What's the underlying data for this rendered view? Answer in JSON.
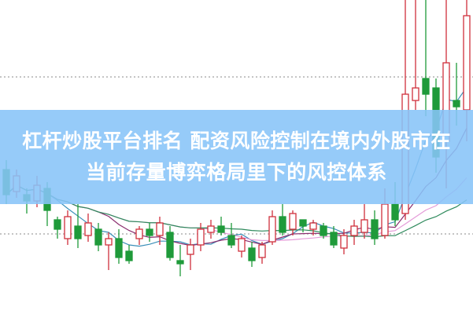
{
  "title": {
    "line1": "杠杆炒股平台排名 配资风险控制在境内外股市在",
    "line2": "当前存量博弈格局里下的风控体系"
  },
  "colors": {
    "up": "#d0303c",
    "down": "#1f9a3a",
    "ma5": "#3a8fb8",
    "ma10": "#8a2d6e",
    "ma20": "#e49ad8",
    "ma30": "#2e8a5c",
    "banner": "#87c4f8"
  },
  "chart_data": {
    "type": "candlestick",
    "grid": "dotted horizontal",
    "ylim": [
      0,
      100
    ],
    "moving_averages": [
      "ma5",
      "ma10",
      "ma20",
      "ma30"
    ],
    "candles": [
      {
        "o": 46,
        "h": 49,
        "l": 35,
        "c": 38
      },
      {
        "o": 39,
        "h": 46,
        "l": 37,
        "c": 44
      },
      {
        "o": 38,
        "h": 40,
        "l": 32,
        "c": 36
      },
      {
        "o": 36,
        "h": 44,
        "l": 34,
        "c": 41
      },
      {
        "o": 40,
        "h": 42,
        "l": 28,
        "c": 33
      },
      {
        "o": 30,
        "h": 31,
        "l": 24,
        "c": 27
      },
      {
        "o": 24,
        "h": 33,
        "l": 22,
        "c": 31
      },
      {
        "o": 28,
        "h": 35,
        "l": 21,
        "c": 24
      },
      {
        "o": 25,
        "h": 32,
        "l": 23,
        "c": 29
      },
      {
        "o": 27,
        "h": 29,
        "l": 20,
        "c": 22
      },
      {
        "o": 22,
        "h": 26,
        "l": 14,
        "c": 24
      },
      {
        "o": 24,
        "h": 27,
        "l": 16,
        "c": 18
      },
      {
        "o": 20,
        "h": 22,
        "l": 16,
        "c": 17
      },
      {
        "o": 24,
        "h": 28,
        "l": 22,
        "c": 27
      },
      {
        "o": 27,
        "h": 29,
        "l": 23,
        "c": 25
      },
      {
        "o": 25,
        "h": 31,
        "l": 22,
        "c": 29
      },
      {
        "o": 26,
        "h": 28,
        "l": 17,
        "c": 18
      },
      {
        "o": 17,
        "h": 22,
        "l": 12,
        "c": 16
      },
      {
        "o": 19,
        "h": 24,
        "l": 14,
        "c": 22
      },
      {
        "o": 22,
        "h": 29,
        "l": 20,
        "c": 27
      },
      {
        "o": 26,
        "h": 30,
        "l": 24,
        "c": 28
      },
      {
        "o": 28,
        "h": 31,
        "l": 25,
        "c": 26
      },
      {
        "o": 25,
        "h": 29,
        "l": 21,
        "c": 22
      },
      {
        "o": 20,
        "h": 25,
        "l": 18,
        "c": 24
      },
      {
        "o": 21,
        "h": 23,
        "l": 15,
        "c": 17
      },
      {
        "o": 18,
        "h": 23,
        "l": 16,
        "c": 22
      },
      {
        "o": 23,
        "h": 33,
        "l": 22,
        "c": 31
      },
      {
        "o": 31,
        "h": 35,
        "l": 25,
        "c": 26
      },
      {
        "o": 27,
        "h": 33,
        "l": 25,
        "c": 32
      },
      {
        "o": 30,
        "h": 29,
        "l": 26,
        "c": 28
      },
      {
        "o": 27,
        "h": 30,
        "l": 25,
        "c": 29
      },
      {
        "o": 28,
        "h": 29,
        "l": 24,
        "c": 25
      },
      {
        "o": 26,
        "h": 28,
        "l": 21,
        "c": 22
      },
      {
        "o": 21,
        "h": 27,
        "l": 19,
        "c": 25
      },
      {
        "o": 25,
        "h": 30,
        "l": 22,
        "c": 28
      },
      {
        "o": 26,
        "h": 35,
        "l": 24,
        "c": 30
      },
      {
        "o": 30,
        "h": 33,
        "l": 22,
        "c": 24
      },
      {
        "o": 25,
        "h": 40,
        "l": 24,
        "c": 35
      },
      {
        "o": 35,
        "h": 42,
        "l": 28,
        "c": 30
      },
      {
        "o": 32,
        "h": 100,
        "l": 30,
        "c": 70
      },
      {
        "o": 68,
        "h": 102,
        "l": 65,
        "c": 72
      },
      {
        "o": 75,
        "h": 100,
        "l": 63,
        "c": 70
      },
      {
        "o": 72,
        "h": 75,
        "l": 45,
        "c": 50
      },
      {
        "o": 55,
        "h": 105,
        "l": 40,
        "c": 80
      },
      {
        "o": 68,
        "h": 80,
        "l": 60,
        "c": 66
      },
      {
        "o": 65,
        "h": 100,
        "l": 55,
        "c": 95
      }
    ]
  }
}
